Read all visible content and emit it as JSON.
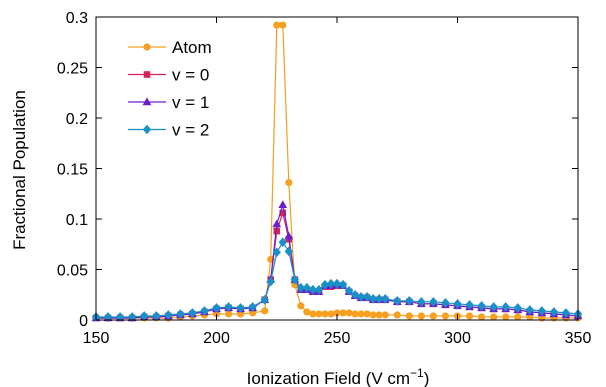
{
  "chart_data": {
    "type": "line",
    "xlabel": "Ionization Field (V cm",
    "xlabel_sup": "−1",
    "xlabel_end": ")",
    "ylabel": "Fractional Population",
    "xlim": [
      150,
      350
    ],
    "ylim": [
      0,
      0.3
    ],
    "xticks": [
      150,
      200,
      250,
      300,
      350
    ],
    "yticks": [
      0,
      0.05,
      0.1,
      0.15,
      0.2,
      0.25,
      0.3
    ],
    "ytick_labels": [
      "0",
      "0.05",
      "0.1",
      "0.15",
      "0.2",
      "0.25",
      "0.3"
    ],
    "grid": false,
    "legend_position": "top-left",
    "x": [
      150,
      155,
      160,
      165,
      170,
      175,
      180,
      185,
      190,
      195,
      200,
      205,
      210,
      215,
      220,
      222.5,
      225,
      227.5,
      230,
      232.5,
      235,
      237.5,
      240,
      242.5,
      245,
      247.5,
      250,
      252.5,
      255,
      257.5,
      260,
      262.5,
      265,
      267.5,
      270,
      275,
      280,
      285,
      290,
      295,
      300,
      305,
      310,
      315,
      320,
      325,
      330,
      335,
      340,
      345,
      350
    ],
    "series": [
      {
        "name": "Atom",
        "color": "#f5a020",
        "marker": "circle",
        "values": [
          0.002,
          0.002,
          0.002,
          0.002,
          0.002,
          0.002,
          0.002,
          0.003,
          0.004,
          0.005,
          0.006,
          0.006,
          0.006,
          0.007,
          0.009,
          0.06,
          0.292,
          0.292,
          0.136,
          0.035,
          0.014,
          0.008,
          0.006,
          0.006,
          0.006,
          0.006,
          0.007,
          0.007,
          0.007,
          0.006,
          0.006,
          0.006,
          0.005,
          0.005,
          0.005,
          0.005,
          0.004,
          0.004,
          0.004,
          0.004,
          0.004,
          0.004,
          0.003,
          0.003,
          0.003,
          0.003,
          0.003,
          0.002,
          0.002,
          0.002,
          0.002
        ]
      },
      {
        "name": "v = 0",
        "color": "#d6245a",
        "marker": "square",
        "values": [
          0.002,
          0.002,
          0.002,
          0.002,
          0.003,
          0.003,
          0.004,
          0.005,
          0.006,
          0.008,
          0.011,
          0.012,
          0.011,
          0.012,
          0.02,
          0.04,
          0.088,
          0.106,
          0.08,
          0.04,
          0.03,
          0.03,
          0.028,
          0.028,
          0.033,
          0.033,
          0.034,
          0.034,
          0.028,
          0.024,
          0.022,
          0.022,
          0.02,
          0.02,
          0.02,
          0.018,
          0.018,
          0.016,
          0.016,
          0.015,
          0.014,
          0.013,
          0.012,
          0.011,
          0.011,
          0.01,
          0.008,
          0.007,
          0.006,
          0.005,
          0.004
        ]
      },
      {
        "name": "v = 1",
        "color": "#6a22c8",
        "marker": "triangle",
        "values": [
          0.002,
          0.002,
          0.002,
          0.002,
          0.003,
          0.003,
          0.004,
          0.005,
          0.006,
          0.008,
          0.011,
          0.012,
          0.011,
          0.012,
          0.02,
          0.04,
          0.095,
          0.114,
          0.083,
          0.04,
          0.03,
          0.03,
          0.028,
          0.028,
          0.034,
          0.034,
          0.035,
          0.034,
          0.028,
          0.024,
          0.022,
          0.022,
          0.02,
          0.02,
          0.02,
          0.018,
          0.018,
          0.016,
          0.016,
          0.015,
          0.014,
          0.013,
          0.012,
          0.011,
          0.011,
          0.01,
          0.008,
          0.007,
          0.006,
          0.005,
          0.004
        ]
      },
      {
        "name": "v = 2",
        "color": "#1a90c8",
        "marker": "diamond",
        "values": [
          0.003,
          0.003,
          0.003,
          0.003,
          0.004,
          0.004,
          0.005,
          0.006,
          0.007,
          0.009,
          0.012,
          0.013,
          0.012,
          0.013,
          0.02,
          0.038,
          0.067,
          0.077,
          0.068,
          0.04,
          0.032,
          0.032,
          0.03,
          0.03,
          0.035,
          0.036,
          0.036,
          0.035,
          0.029,
          0.025,
          0.023,
          0.023,
          0.021,
          0.021,
          0.021,
          0.019,
          0.019,
          0.018,
          0.018,
          0.017,
          0.016,
          0.015,
          0.014,
          0.013,
          0.013,
          0.012,
          0.01,
          0.009,
          0.008,
          0.007,
          0.006
        ]
      }
    ]
  }
}
